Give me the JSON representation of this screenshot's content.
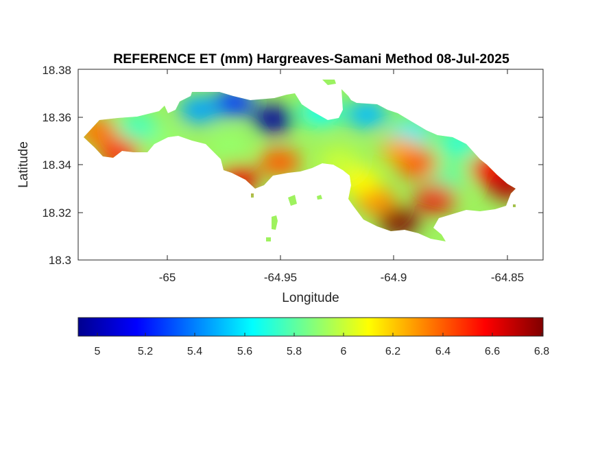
{
  "map": {
    "title": "REFERENCE ET (mm) Hargreaves-Samani Method  08-Jul-2025",
    "xlabel": "Longitude",
    "ylabel": "Latitude",
    "xticks": [
      "-65",
      "-64.95",
      "-64.9",
      "-64.85"
    ],
    "yticks": [
      "18.38",
      "18.36",
      "18.34",
      "18.32",
      "18.3"
    ],
    "colorbar_ticks": [
      "5",
      "5.2",
      "5.4",
      "5.6",
      "5.8",
      "6",
      "6.2",
      "6.4",
      "6.6",
      "6.8"
    ]
  },
  "chart_data": {
    "type": "heatmap",
    "title": "REFERENCE ET (mm) Hargreaves-Samani Method  08-Jul-2025",
    "xlabel": "Longitude",
    "ylabel": "Latitude",
    "xlim": [
      -65.038,
      -64.835
    ],
    "ylim": [
      18.3,
      18.38
    ],
    "xtick_values": [
      -65,
      -64.95,
      -64.9,
      -64.85
    ],
    "ytick_values": [
      18.38,
      18.36,
      18.34,
      18.32,
      18.3
    ],
    "colormap": "jet",
    "clim": [
      4.92,
      6.8
    ],
    "colorbar_tick_values": [
      5,
      5.2,
      5.4,
      5.6,
      5.8,
      6,
      6.2,
      6.4,
      6.6,
      6.8
    ],
    "colorbar_location": "bottom",
    "grid": false,
    "zones": [
      {
        "lon": -64.953,
        "lat": 18.359,
        "value": 4.95
      },
      {
        "lon": -64.97,
        "lat": 18.366,
        "value": 5.25
      },
      {
        "lon": -64.985,
        "lat": 18.363,
        "value": 5.45
      },
      {
        "lon": -64.932,
        "lat": 18.362,
        "value": 5.65
      },
      {
        "lon": -64.912,
        "lat": 18.361,
        "value": 5.5
      },
      {
        "lon": -64.893,
        "lat": 18.353,
        "value": 5.6
      },
      {
        "lon": -64.872,
        "lat": 18.349,
        "value": 5.7
      },
      {
        "lon": -64.877,
        "lat": 18.335,
        "value": 5.8
      },
      {
        "lon": -64.858,
        "lat": 18.338,
        "value": 6.55
      },
      {
        "lon": -64.85,
        "lat": 18.331,
        "value": 6.7
      },
      {
        "lon": -64.882,
        "lat": 18.326,
        "value": 6.6
      },
      {
        "lon": -64.898,
        "lat": 18.316,
        "value": 6.8
      },
      {
        "lon": -64.908,
        "lat": 18.325,
        "value": 6.3
      },
      {
        "lon": -64.915,
        "lat": 18.333,
        "value": 6.1
      },
      {
        "lon": -64.924,
        "lat": 18.341,
        "value": 6.0
      },
      {
        "lon": -64.95,
        "lat": 18.341,
        "value": 6.4
      },
      {
        "lon": -64.968,
        "lat": 18.334,
        "value": 6.6
      },
      {
        "lon": -64.972,
        "lat": 18.348,
        "value": 5.9
      },
      {
        "lon": -65.0,
        "lat": 18.349,
        "value": 5.9
      },
      {
        "lon": -65.012,
        "lat": 18.356,
        "value": 5.75
      },
      {
        "lon": -65.03,
        "lat": 18.354,
        "value": 6.35
      },
      {
        "lon": -65.02,
        "lat": 18.345,
        "value": 6.5
      },
      {
        "lon": -64.897,
        "lat": 18.346,
        "value": 6.25
      },
      {
        "lon": -64.89,
        "lat": 18.34,
        "value": 6.4
      }
    ]
  }
}
